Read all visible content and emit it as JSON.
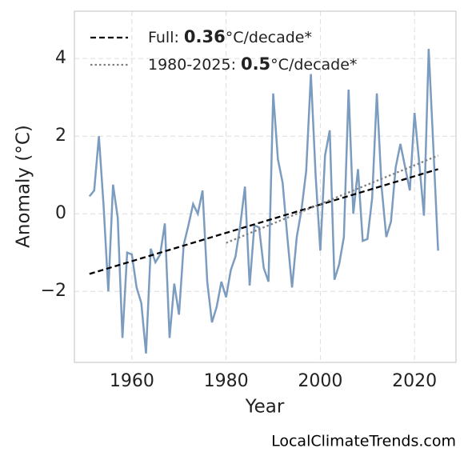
{
  "chart_data": {
    "type": "line",
    "xlabel": "Year",
    "ylabel": "Anomaly (°C)",
    "source": "LocalClimateTrends.com",
    "xlim": [
      1947.8,
      2028.8
    ],
    "ylim": [
      -3.83,
      5.22
    ],
    "xticks": [
      1960,
      1980,
      2000,
      2020
    ],
    "yticks": [
      {
        "value": -2,
        "label": "−2"
      },
      0,
      2,
      4
    ],
    "grid": true,
    "legend": "upper left",
    "x": [
      1951,
      1952,
      1953,
      1954,
      1955,
      1956,
      1957,
      1958,
      1959,
      1960,
      1961,
      1962,
      1963,
      1964,
      1965,
      1966,
      1967,
      1968,
      1969,
      1970,
      1971,
      1972,
      1973,
      1974,
      1975,
      1976,
      1977,
      1978,
      1979,
      1980,
      1981,
      1982,
      1983,
      1984,
      1985,
      1986,
      1987,
      1988,
      1989,
      1990,
      1991,
      1992,
      1993,
      1994,
      1995,
      1996,
      1997,
      1998,
      1999,
      2000,
      2001,
      2002,
      2003,
      2004,
      2005,
      2006,
      2007,
      2008,
      2009,
      2010,
      2011,
      2012,
      2013,
      2014,
      2015,
      2016,
      2017,
      2018,
      2019,
      2020,
      2021,
      2022,
      2023,
      2024,
      2025
    ],
    "values": [
      0.45,
      0.6,
      2.0,
      0.2,
      -2.0,
      0.75,
      -0.1,
      -3.2,
      -1.0,
      -1.05,
      -1.9,
      -2.3,
      -3.6,
      -0.9,
      -1.25,
      -1.05,
      -0.25,
      -3.2,
      -1.8,
      -2.6,
      -0.8,
      -0.3,
      0.25,
      0.0,
      0.6,
      -1.75,
      -2.8,
      -2.4,
      -1.75,
      -2.15,
      -1.45,
      -1.1,
      -0.3,
      0.7,
      -1.85,
      -0.3,
      -0.35,
      -1.4,
      -1.75,
      3.1,
      1.4,
      0.8,
      -0.6,
      -1.9,
      -0.6,
      0.1,
      1.1,
      3.6,
      1.0,
      -0.95,
      1.5,
      2.15,
      -1.7,
      -1.3,
      -0.6,
      3.2,
      0.0,
      1.15,
      -0.7,
      -0.65,
      0.4,
      3.1,
      0.7,
      -0.6,
      -0.2,
      1.2,
      1.8,
      1.2,
      0.6,
      2.6,
      1.3,
      -0.05,
      4.25,
      1.7,
      -0.95
    ],
    "color": "#7c9cbf",
    "trends": [
      {
        "label": {
          "prefix": "Full:",
          "bold": "0.36",
          "suffix": "°C/decade*"
        },
        "color": "#000000",
        "dash": "dashed",
        "x": [
          1951,
          2025
        ],
        "values": [
          -1.55,
          1.15
        ]
      },
      {
        "label": {
          "prefix": "1980-2025:",
          "bold": "0.5",
          "suffix": "°C/decade*"
        },
        "color": "#808080",
        "dash": "dotted",
        "x": [
          1980,
          2025
        ],
        "values": [
          -0.75,
          1.5
        ]
      }
    ]
  }
}
